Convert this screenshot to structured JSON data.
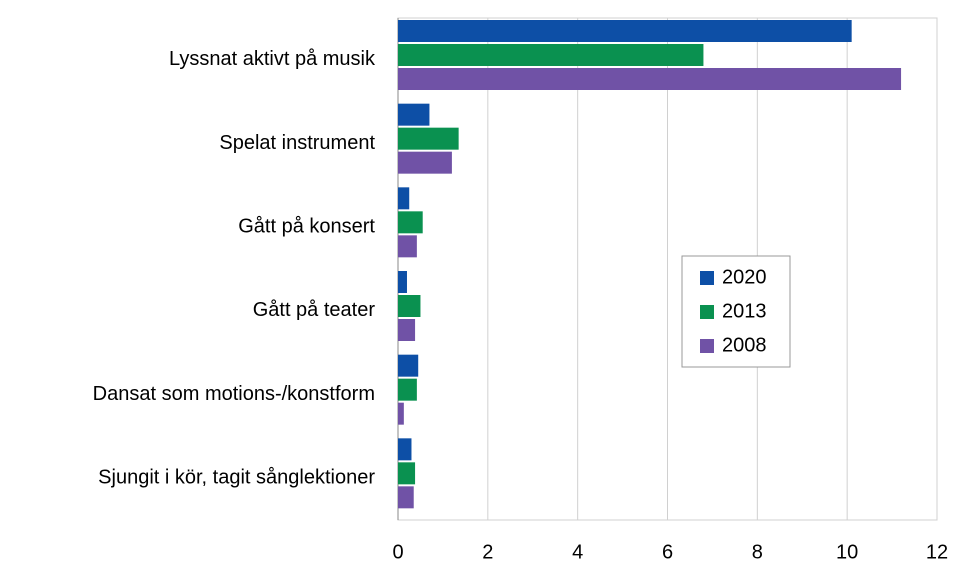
{
  "chart_data": {
    "type": "hbar",
    "categories": [
      "Lyssnat aktivt på musik",
      "Spelat instrument",
      "Gått på konsert",
      "Gått på teater",
      "Dansat som motions-/konstform",
      "Sjungit i kör, tagit sånglektioner"
    ],
    "series": [
      {
        "name": "2020",
        "color": "#0d4fa6",
        "values": [
          10.1,
          0.7,
          0.25,
          0.2,
          0.45,
          0.3
        ]
      },
      {
        "name": "2013",
        "color": "#0a9150",
        "values": [
          6.8,
          1.35,
          0.55,
          0.5,
          0.42,
          0.38
        ]
      },
      {
        "name": "2008",
        "color": "#7052a6",
        "values": [
          11.2,
          1.2,
          0.42,
          0.38,
          0.13,
          0.35
        ]
      }
    ],
    "xlim": [
      0,
      12
    ],
    "xticks": [
      0,
      2,
      4,
      6,
      8,
      10,
      12
    ],
    "grid": true,
    "legend": "right"
  }
}
